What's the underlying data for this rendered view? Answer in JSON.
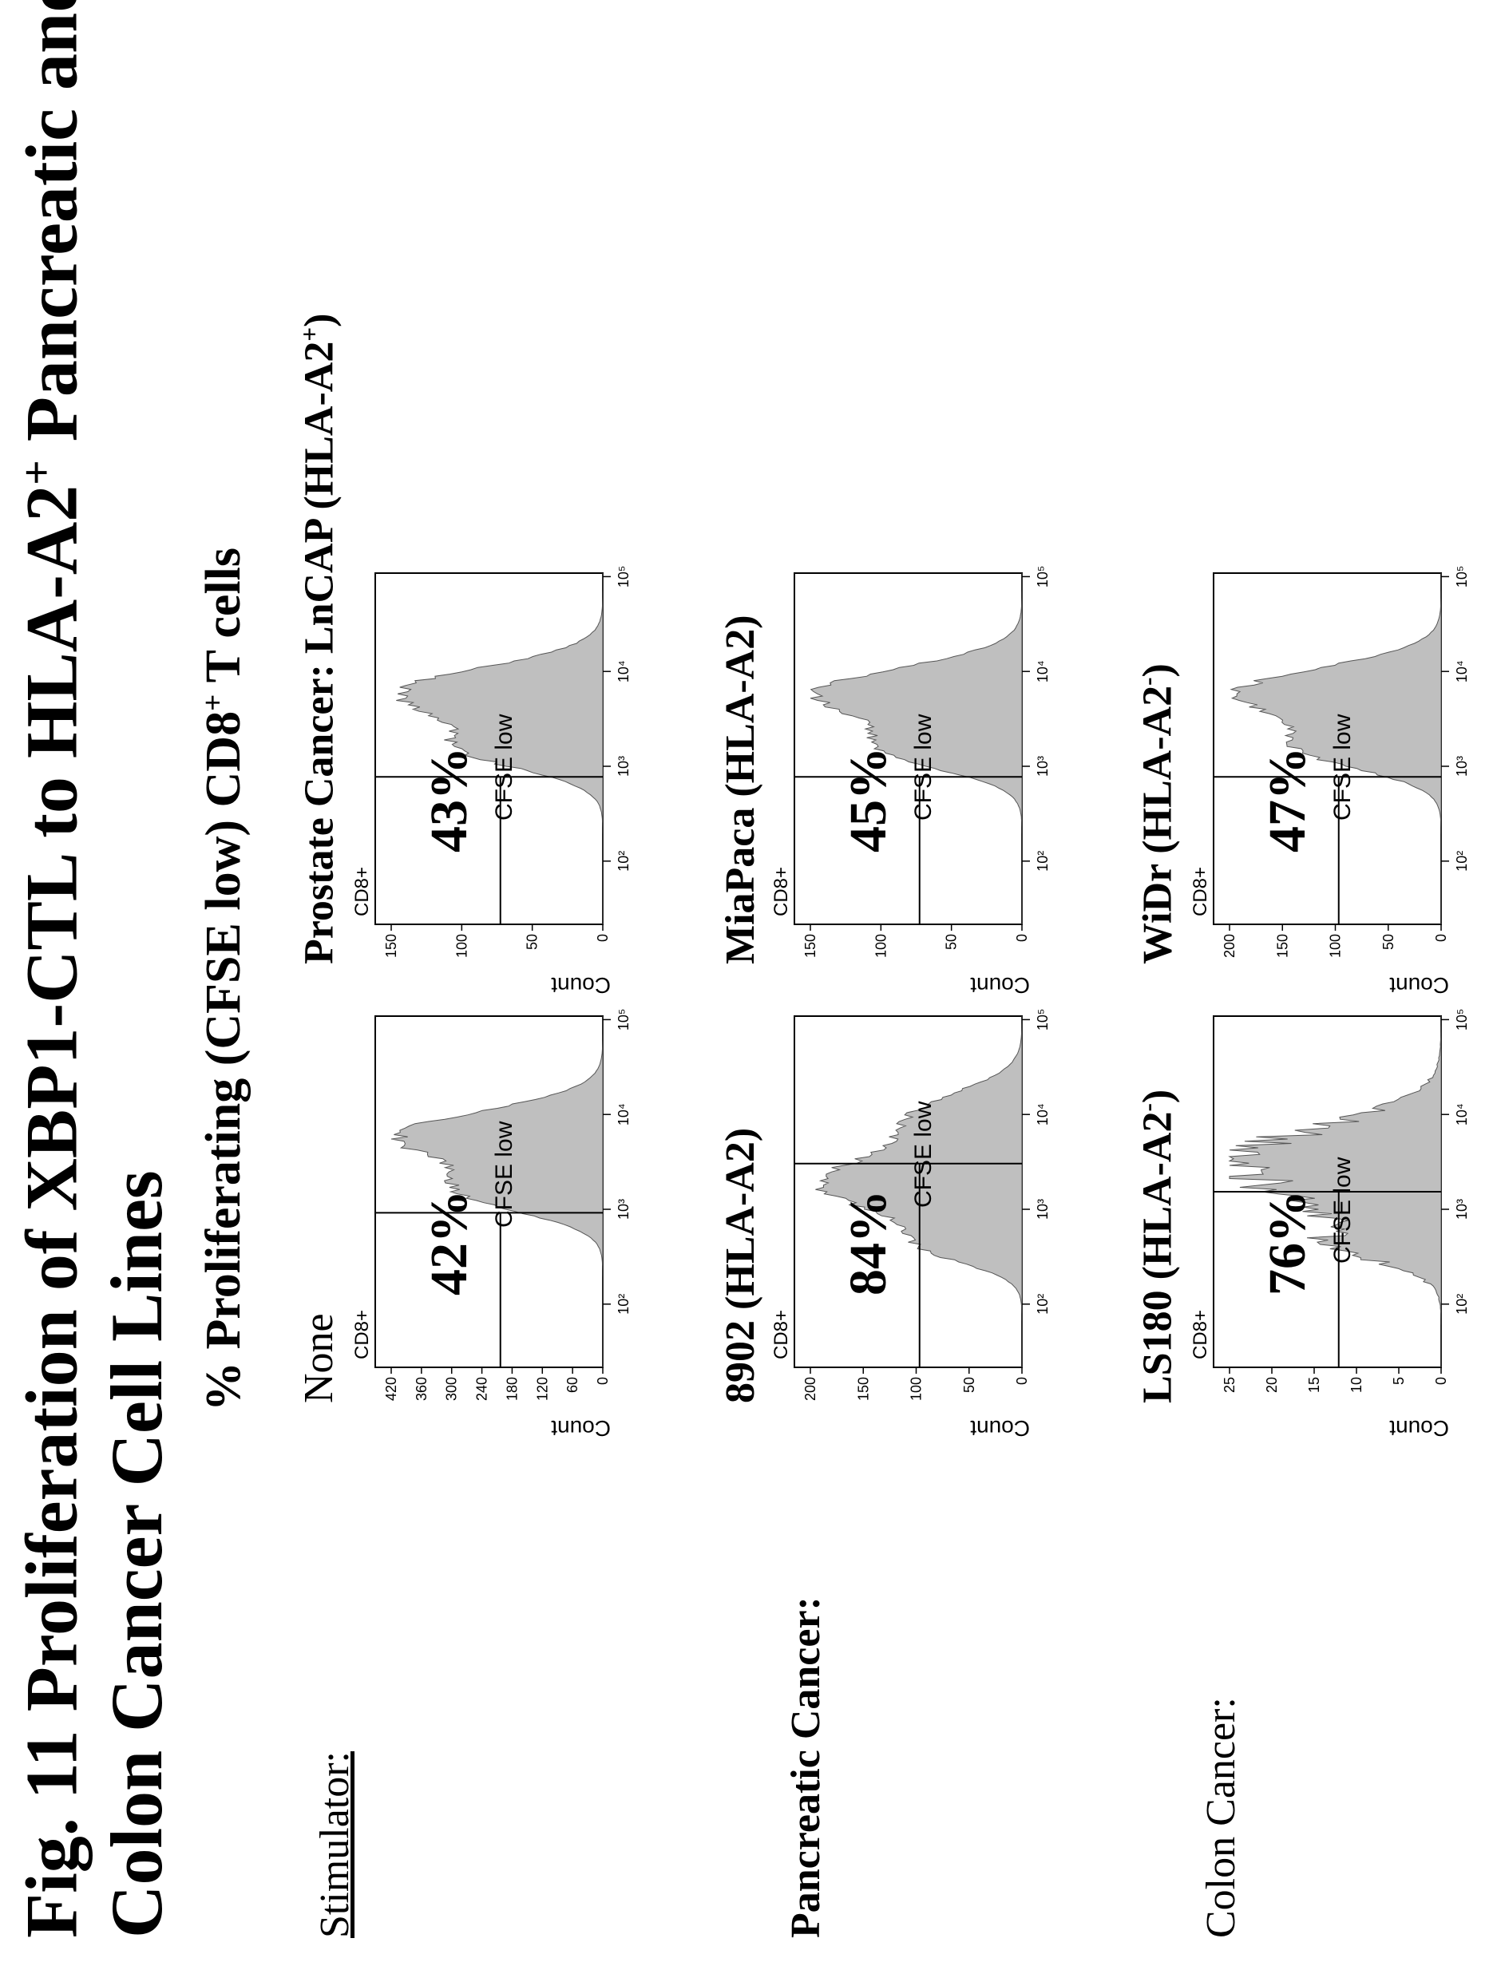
{
  "figure": {
    "title_line1": "Fig. 11  Proliferation of XBP1-CTL to HLA-A2",
    "title_sup": "+",
    "title_line1_end": " Pancreatic and",
    "title_line2": "Colon Cancer Cell Lines",
    "subtitle_pre": "% Proliferating (CFSE low) CD8",
    "subtitle_sup": "+",
    "subtitle_post": " T cells"
  },
  "rows": {
    "stimulator": "Stimulator:",
    "pancreatic": "Pancreatic Cancer:",
    "colon": "Colon Cancer:"
  },
  "labels": {
    "none": "None",
    "prostate": "Prostate Cancer: LnCAP (HLA-A2",
    "prostate_sup": "+",
    "prostate_end": ")",
    "p8902": "8902 (HLA-A2)",
    "miapaca": "MiaPaca (HLA-A2)",
    "ls180": "LS180 (HLA-A2",
    "ls180_sup": "-",
    "ls180_end": ")",
    "widr": "WiDr (HLA-A2",
    "widr_sup": "-",
    "widr_end": ")"
  },
  "common": {
    "cd8": "CD8+",
    "cfse_low": "CFSE low",
    "ylabel": "Count"
  },
  "chart_data": [
    {
      "type": "histogram",
      "id": "none",
      "percent": "42%",
      "ylabel": "Count",
      "yticks": [
        "0",
        "60",
        "120",
        "180",
        "240",
        "300",
        "360",
        "420"
      ],
      "ymax": 420,
      "xticks": [
        "10²",
        "10³",
        "10⁴",
        "10⁵"
      ],
      "gate_value": 0.44,
      "shape": "bimodal"
    },
    {
      "type": "histogram",
      "id": "lncap",
      "percent": "43%",
      "ylabel": "Count",
      "yticks": [
        "0",
        "50",
        "100",
        "150"
      ],
      "ymax": 175,
      "xticks": [
        "10²",
        "10³",
        "10⁴",
        "10⁵"
      ],
      "gate_value": 0.42,
      "shape": "bimodal"
    },
    {
      "type": "histogram",
      "id": "p8902",
      "percent": "84%",
      "ylabel": "Count",
      "yticks": [
        "0",
        "50",
        "100",
        "150",
        "200"
      ],
      "ymax": 215,
      "xticks": [
        "10²",
        "10³",
        "10⁴",
        "10⁵"
      ],
      "gate_value": 0.58,
      "shape": "left"
    },
    {
      "type": "histogram",
      "id": "miapaca",
      "percent": "45%",
      "ylabel": "Count",
      "yticks": [
        "0",
        "50",
        "100",
        "150"
      ],
      "ymax": 175,
      "xticks": [
        "10²",
        "10³",
        "10⁴",
        "10⁵"
      ],
      "gate_value": 0.42,
      "shape": "bimodal"
    },
    {
      "type": "histogram",
      "id": "ls180",
      "percent": "76%",
      "ylabel": "Count",
      "yticks": [
        "0",
        "5",
        "10",
        "15",
        "20",
        "25"
      ],
      "ymax": 27,
      "xticks": [
        "10²",
        "10³",
        "10⁴",
        "10⁵"
      ],
      "gate_value": 0.5,
      "shape": "spiky"
    },
    {
      "type": "histogram",
      "id": "widr",
      "percent": "47%",
      "ylabel": "Count",
      "yticks": [
        "0",
        "50",
        "100",
        "150",
        "200"
      ],
      "ymax": 215,
      "xticks": [
        "10²",
        "10³",
        "10⁴",
        "10⁵"
      ],
      "gate_value": 0.42,
      "shape": "bimodal"
    }
  ]
}
